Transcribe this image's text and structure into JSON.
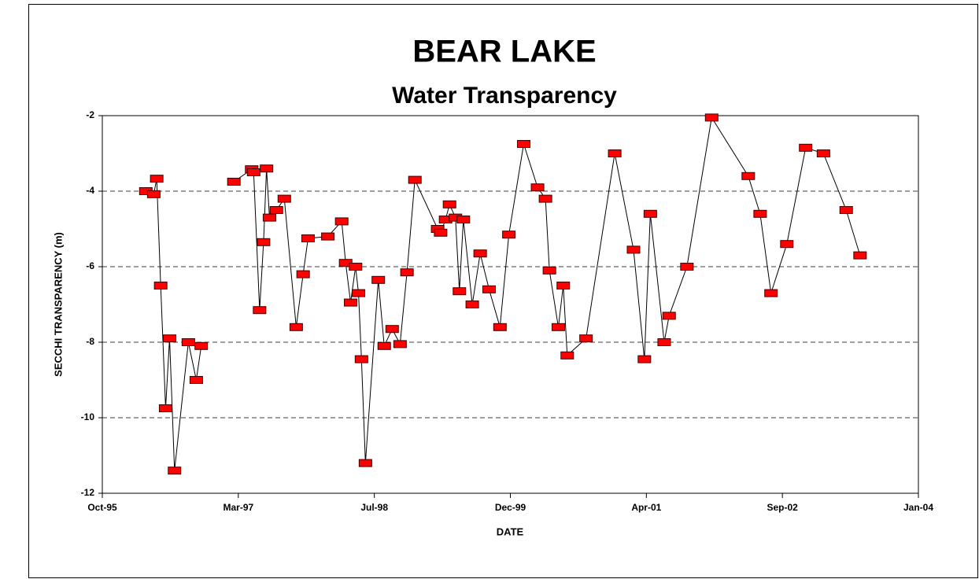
{
  "chart_data": {
    "type": "line",
    "title": "BEAR LAKE",
    "subtitle": "Water Transparency",
    "x_label": "DATE",
    "y_label": "SECCHI TRANSPARENCY (m)",
    "xlim": [
      1995.75,
      2004.0
    ],
    "xticks": [
      {
        "value": 1995.75,
        "label": "Oct-95"
      },
      {
        "value": 1997.125,
        "label": "Mar-97"
      },
      {
        "value": 1998.5,
        "label": "Jul-98"
      },
      {
        "value": 1999.875,
        "label": "Dec-99"
      },
      {
        "value": 2001.25,
        "label": "Apr-01"
      },
      {
        "value": 2002.625,
        "label": "Sep-02"
      },
      {
        "value": 2004.0,
        "label": "Jan-04"
      }
    ],
    "ylim": [
      -12,
      -2
    ],
    "yticks": [
      -12,
      -10,
      -8,
      -6,
      -4,
      -2
    ],
    "grid": true,
    "series": [
      {
        "name": "Secchi transparency",
        "color": "#ff0000",
        "x": [
          1996.19,
          1996.27,
          1996.3,
          1996.34,
          1996.39,
          1996.43,
          1996.48,
          1996.62,
          1996.7,
          1996.75,
          null,
          1997.08,
          1997.26,
          1997.28,
          1997.34,
          1997.38,
          1997.41,
          1997.44,
          1997.51,
          1997.59,
          1997.71,
          1997.78,
          1997.83,
          1998.03,
          1998.17,
          1998.21,
          1998.26,
          1998.31,
          1998.34,
          1998.37,
          1998.41,
          1998.54,
          1998.6,
          1998.68,
          1998.76,
          1998.83,
          1998.91,
          1999.14,
          1999.17,
          1999.22,
          1999.26,
          1999.32,
          1999.36,
          1999.4,
          1999.49,
          1999.57,
          1999.66,
          1999.77,
          1999.86,
          2000.01,
          2000.15,
          2000.23,
          2000.27,
          2000.36,
          2000.41,
          2000.45,
          2000.64,
          2000.93,
          2001.12,
          2001.23,
          2001.29,
          2001.43,
          2001.48,
          2001.66,
          2001.91,
          2002.28,
          2002.4,
          2002.51,
          2002.67,
          2002.86,
          2003.04,
          2003.27,
          2003.41
        ],
        "values": [
          -4.0,
          -4.08,
          -3.67,
          -6.5,
          -9.75,
          -7.9,
          -11.4,
          -8.0,
          -9.0,
          -8.1,
          null,
          -3.75,
          -3.42,
          -3.5,
          -7.15,
          -5.35,
          -3.4,
          -4.7,
          -4.5,
          -4.2,
          -7.6,
          -6.2,
          -5.25,
          -5.2,
          -4.8,
          -5.9,
          -6.95,
          -6.0,
          -6.7,
          -8.45,
          -11.2,
          -6.35,
          -8.1,
          -7.65,
          -8.05,
          -6.15,
          -3.7,
          -5.0,
          -5.1,
          -4.75,
          -4.35,
          -4.7,
          -6.65,
          -4.75,
          -7.0,
          -5.65,
          -6.6,
          -7.6,
          -5.15,
          -2.75,
          -3.9,
          -4.2,
          -6.1,
          -7.6,
          -6.5,
          -8.35,
          -7.9,
          -3.0,
          -5.55,
          -8.45,
          -4.6,
          -8.0,
          -7.3,
          -6.0,
          -2.05,
          -3.6,
          -4.6,
          -6.7,
          -5.4,
          -2.85,
          -3.0,
          -4.5,
          -5.7
        ]
      }
    ]
  }
}
